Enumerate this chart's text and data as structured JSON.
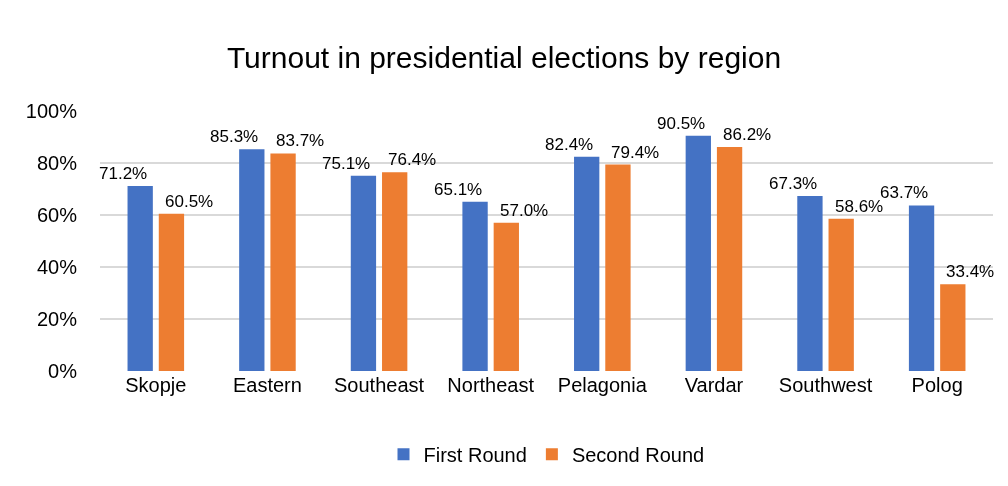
{
  "chart_data": {
    "type": "bar",
    "title": "Turnout in presidential elections by region",
    "categories": [
      "Skopje",
      "Eastern",
      "Southeast",
      "Northeast",
      "Pelagonia",
      "Vardar",
      "Southwest",
      "Polog"
    ],
    "series": [
      {
        "name": "First Round",
        "color": "#4472c4",
        "values": [
          71.2,
          85.3,
          75.1,
          65.1,
          82.4,
          90.5,
          67.3,
          63.7
        ],
        "value_labels": [
          "71.2%",
          "85.3%",
          "75.1%",
          "65.1%",
          "82.4%",
          "90.5%",
          "67.3%",
          "63.7%"
        ]
      },
      {
        "name": "Second Round",
        "color": "#ed7d31",
        "values": [
          60.5,
          83.7,
          76.4,
          57.0,
          79.4,
          86.2,
          58.6,
          33.4
        ],
        "value_labels": [
          "60.5%",
          "83.7%",
          "76.4%",
          "57.0%",
          "79.4%",
          "86.2%",
          "58.6%",
          "33.4%"
        ]
      }
    ],
    "ylim": [
      0,
      100
    ],
    "yticks": [
      {
        "value": 0,
        "label": "0%"
      },
      {
        "value": 20,
        "label": "20%"
      },
      {
        "value": 40,
        "label": "40%"
      },
      {
        "value": 60,
        "label": "60%"
      },
      {
        "value": 80,
        "label": "80%"
      },
      {
        "value": 100,
        "label": "100%"
      }
    ],
    "grid": "y",
    "legend": "bottom"
  }
}
